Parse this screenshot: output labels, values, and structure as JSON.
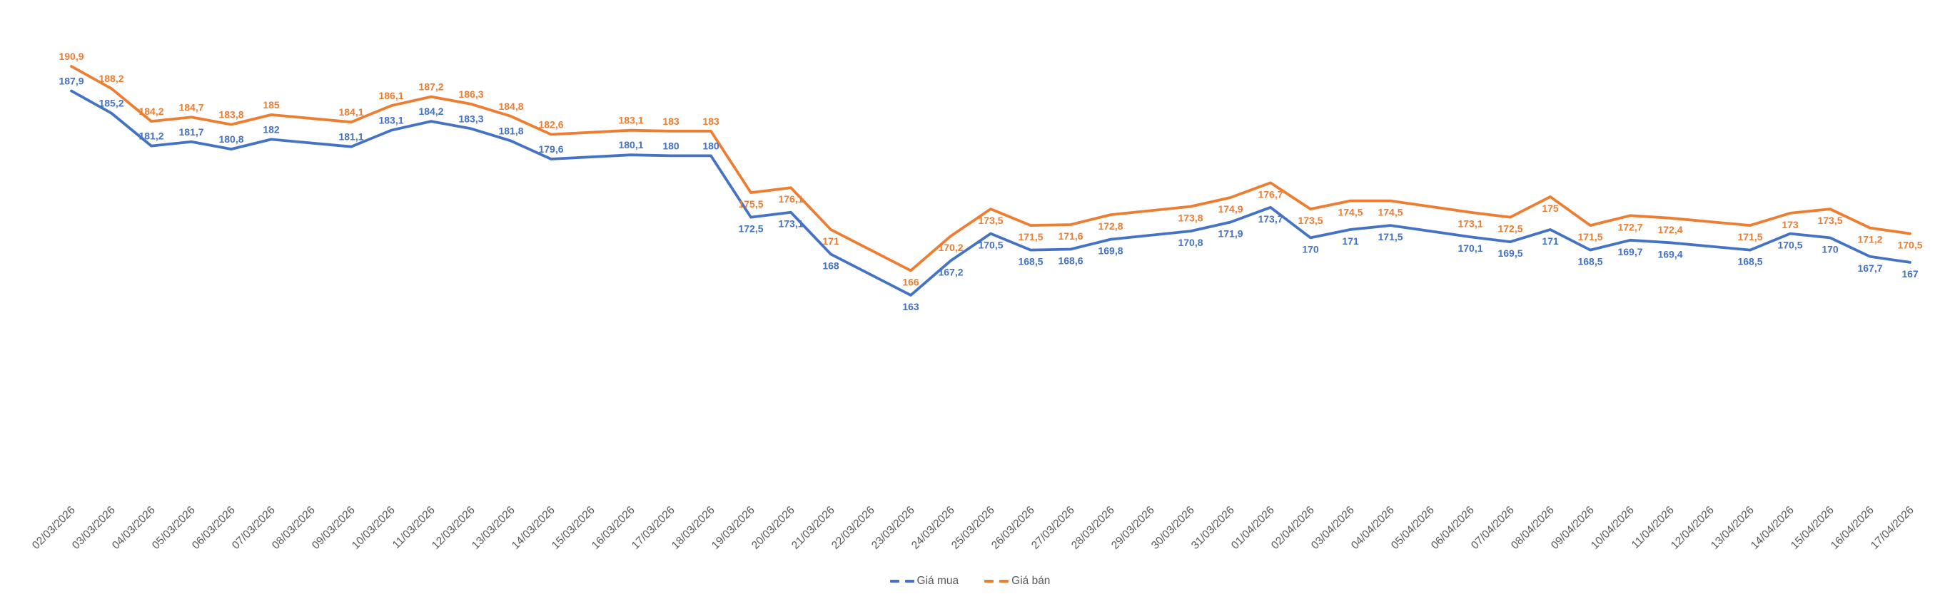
{
  "chart_data": {
    "type": "line",
    "title": "",
    "categories": [
      "02/03/2026",
      "03/03/2026",
      "04/03/2026",
      "05/03/2026",
      "06/03/2026",
      "07/03/2026",
      "08/03/2026",
      "09/03/2026",
      "10/03/2026",
      "11/03/2026",
      "12/03/2026",
      "13/03/2026",
      "14/03/2026",
      "15/03/2026",
      "16/03/2026",
      "17/03/2026",
      "18/03/2026",
      "19/03/2026",
      "20/03/2026",
      "21/03/2026",
      "22/03/2026",
      "23/03/2026",
      "24/03/2026",
      "25/03/2026",
      "26/03/2026",
      "27/03/2026",
      "28/03/2026",
      "29/03/2026",
      "30/03/2026",
      "31/03/2026",
      "01/04/2026",
      "02/04/2026",
      "03/04/2026",
      "04/04/2026",
      "05/04/2026",
      "06/04/2026",
      "07/04/2026",
      "08/04/2026",
      "09/04/2026",
      "10/04/2026",
      "11/04/2026",
      "12/04/2026",
      "13/04/2026",
      "14/04/2026",
      "15/04/2026",
      "16/04/2026",
      "17/04/2026"
    ],
    "series": [
      {
        "name": "Giá mua",
        "color": "#4472C4",
        "values": [
          187.9,
          185.2,
          181.2,
          181.7,
          180.8,
          182,
          null,
          181.1,
          183.1,
          184.2,
          183.3,
          181.8,
          179.6,
          null,
          180.1,
          180,
          180,
          172.5,
          173.1,
          168,
          null,
          163,
          167.2,
          170.5,
          168.5,
          168.6,
          169.8,
          null,
          170.8,
          171.9,
          173.7,
          170,
          171,
          171.5,
          null,
          170.1,
          169.5,
          171,
          168.5,
          169.7,
          169.4,
          null,
          168.5,
          170.5,
          170,
          167.7,
          167
        ]
      },
      {
        "name": "Giá bán",
        "color": "#ED7D31",
        "values": [
          190.9,
          188.2,
          184.2,
          184.7,
          183.8,
          185,
          null,
          184.1,
          186.1,
          187.2,
          186.3,
          184.8,
          182.6,
          null,
          183.1,
          183,
          183,
          175.5,
          176.1,
          171,
          null,
          166,
          170.2,
          173.5,
          171.5,
          171.6,
          172.8,
          null,
          173.8,
          174.9,
          176.7,
          173.5,
          174.5,
          174.5,
          null,
          173.1,
          172.5,
          175,
          171.5,
          172.7,
          172.4,
          null,
          171.5,
          173,
          173.5,
          171.2,
          170.5
        ]
      }
    ],
    "legend_position": "bottom",
    "grid": false,
    "y_axis_visible": false,
    "x_axis_label_color": "#595959",
    "decimal_separator": ",",
    "value_range_shown": [
      163,
      190.9
    ],
    "labels_below_from_index": 17
  }
}
